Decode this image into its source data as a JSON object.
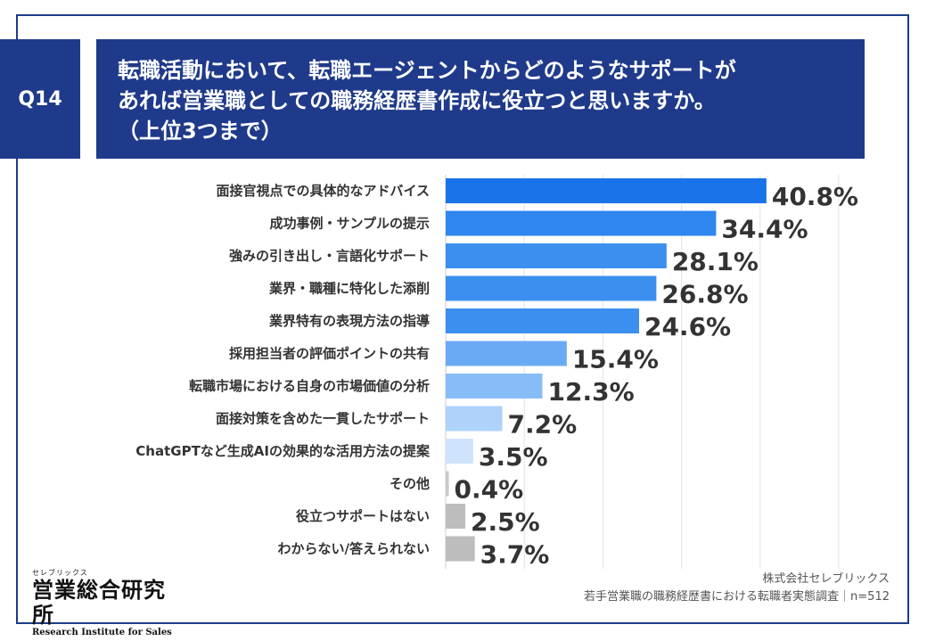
{
  "header": {
    "question_id": "Q14",
    "title_lines": [
      "転職活動において、転職エージェントからどのようなサポートが",
      "あれば営業職としての職務経歴書作成に役立つと思いますか。",
      "（上位3つまで）"
    ]
  },
  "colors": {
    "frame": "#1f3a8a",
    "bar_colors": [
      "#1a73e8",
      "#2f86ee",
      "#3b8fef",
      "#3b8fef",
      "#3b8fef",
      "#6aaaf5",
      "#87bdf7",
      "#aed2fa",
      "#cfe3fc",
      "#c9c9c9",
      "#bdbdbd",
      "#bdbdbd"
    ]
  },
  "chart_data": {
    "type": "bar",
    "orientation": "horizontal",
    "categories": [
      "面接官視点での具体的なアドバイス",
      "成功事例・サンプルの提示",
      "強みの引き出し・言語化サポート",
      "業界・職種に特化した添削",
      "業界特有の表現方法の指導",
      "採用担当者の評価ポイントの共有",
      "転職市場における自身の市場価値の分析",
      "面接対策を含めた一貫したサポート",
      "ChatGPTなど生成AIの効果的な活用方法の提案",
      "その他",
      "役立つサポートはない",
      "わからない/答えられない"
    ],
    "values": [
      40.8,
      34.4,
      28.1,
      26.8,
      24.6,
      15.4,
      12.3,
      7.2,
      3.5,
      0.4,
      2.5,
      3.7
    ],
    "value_labels": [
      "40.8%",
      "34.4%",
      "28.1%",
      "26.8%",
      "24.6%",
      "15.4%",
      "12.3%",
      "7.2%",
      "3.5%",
      "0.4%",
      "2.5%",
      "3.7%"
    ],
    "xlim": [
      0,
      50
    ],
    "grid": true
  },
  "footer": {
    "logo_small": "セレブリックス",
    "logo_main": "営業総合研究所",
    "logo_sub": "Research Institute for Sales",
    "source_company": "株式会社セレブリックス",
    "source_survey": "若手営業職の職務経歴書における転職者実態調査｜n=512"
  }
}
